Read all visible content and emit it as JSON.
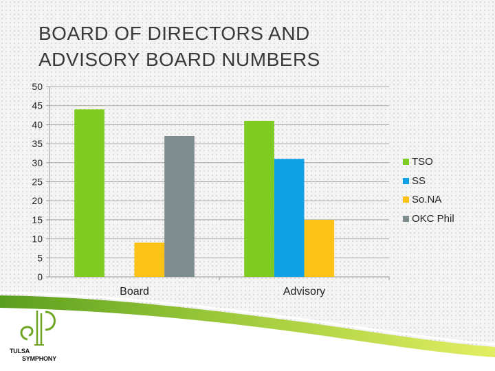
{
  "slide": {
    "title_line1": "BOARD OF DIRECTORS AND",
    "title_line2": "ADVISORY BOARD NUMBERS"
  },
  "logo": {
    "line1": "TULSA",
    "line2": "SYMPHONY"
  },
  "colors": {
    "grass_dark": "#5a9e1e",
    "grass_light": "#d9ea4a",
    "logo_green": "#6ea624"
  },
  "chart_data": {
    "type": "bar",
    "categories": [
      "Board",
      "Advisory"
    ],
    "series": [
      {
        "name": "TSO",
        "color": "#7ecc1f",
        "values": [
          44,
          41
        ]
      },
      {
        "name": "SS",
        "color": "#0fa0e6",
        "values": [
          null,
          31
        ]
      },
      {
        "name": "So.NA",
        "color": "#fcc316",
        "values": [
          9,
          15
        ]
      },
      {
        "name": "OKC Phil",
        "color": "#7d8c8c",
        "values": [
          37,
          null
        ]
      }
    ],
    "y_ticks": [
      "0",
      "5",
      "10",
      "15",
      "20",
      "25",
      "30",
      "35",
      "40",
      "45",
      "50"
    ],
    "ylim": [
      0,
      50
    ],
    "grid": true,
    "legend_position": "right"
  }
}
